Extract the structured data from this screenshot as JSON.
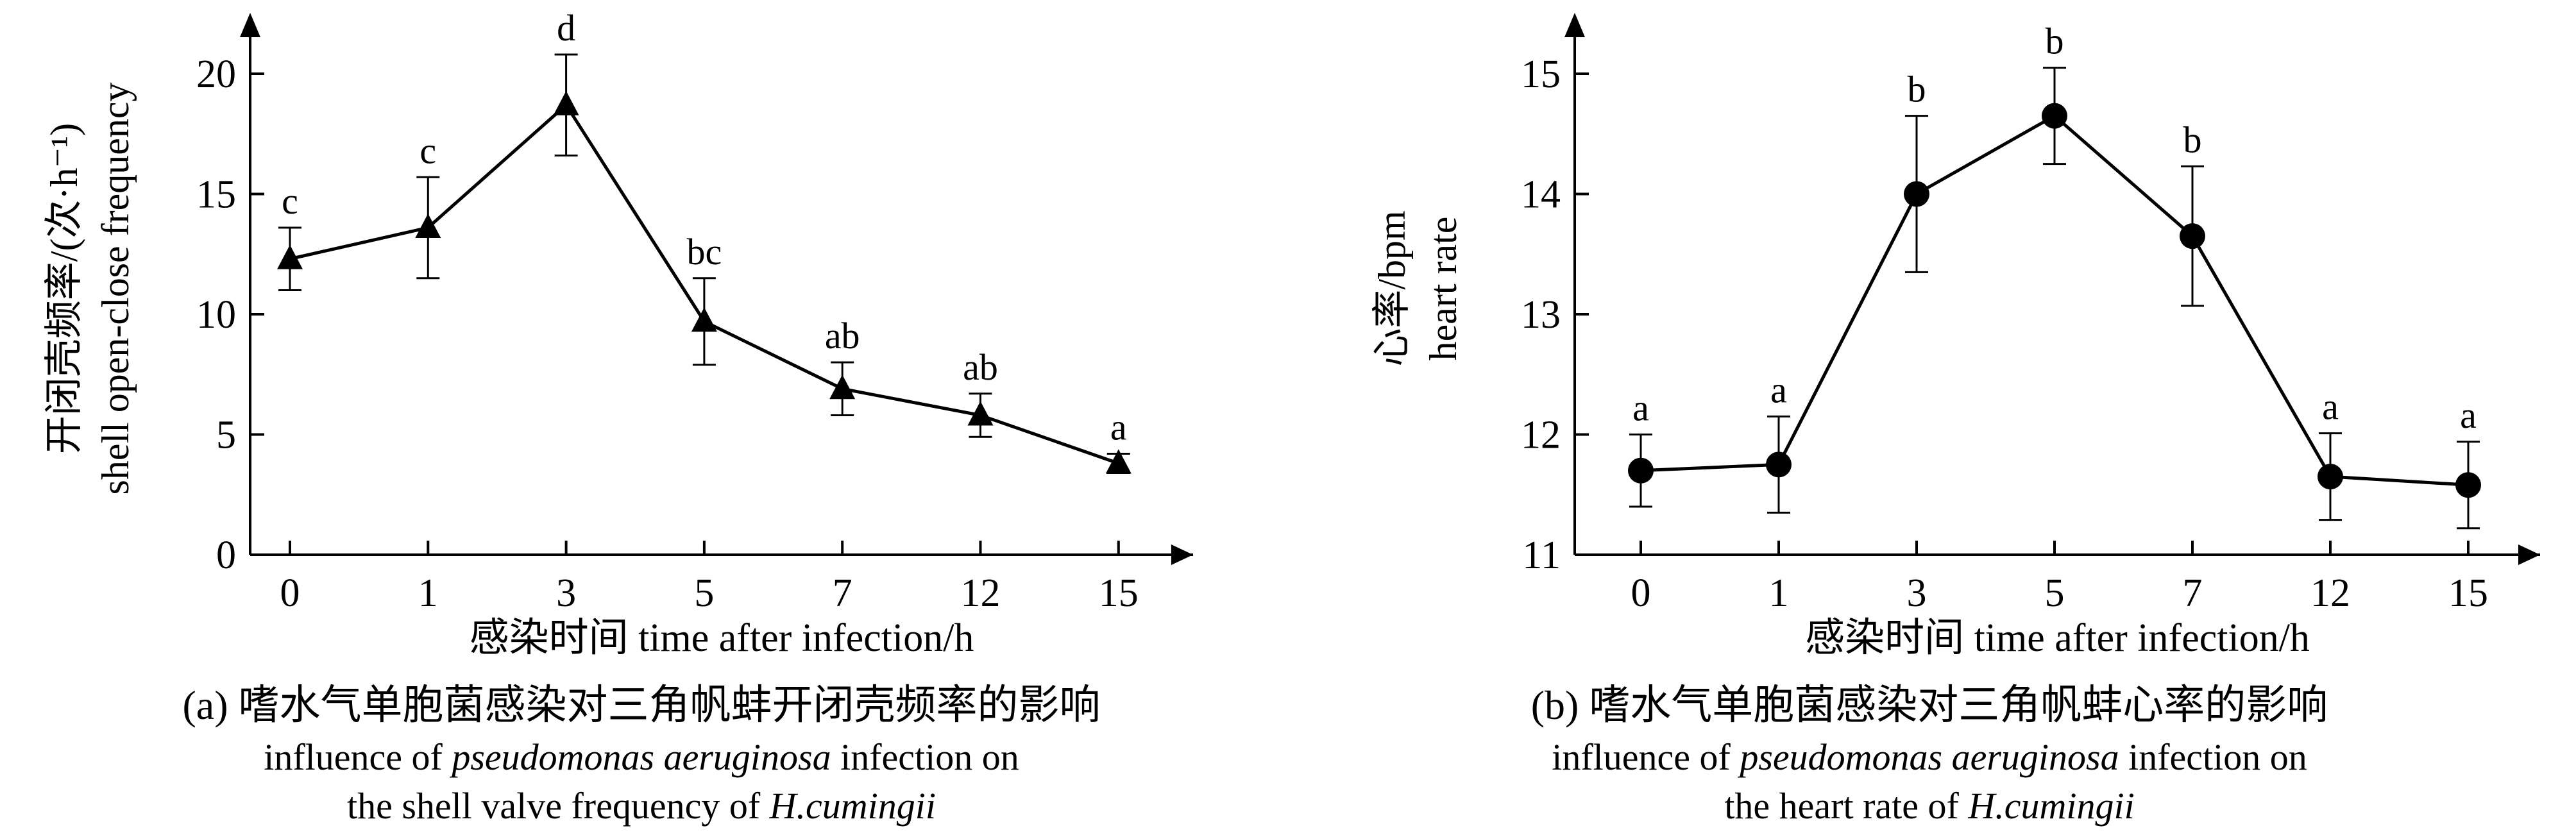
{
  "chart_data": [
    {
      "id": "a",
      "type": "line",
      "categories": [
        "0",
        "1",
        "3",
        "5",
        "7",
        "12",
        "15"
      ],
      "series": [
        {
          "marker": "triangle",
          "values": [
            12.3,
            13.6,
            18.7,
            9.7,
            6.9,
            5.8,
            3.8
          ],
          "errors": [
            1.3,
            2.1,
            2.1,
            1.8,
            1.1,
            0.9,
            0.4
          ],
          "significance": [
            "c",
            "c",
            "d",
            "bc",
            "ab",
            "ab",
            "a"
          ]
        }
      ],
      "ylim": [
        0,
        22
      ],
      "yticks": [
        "0",
        "5",
        "10",
        "15",
        "20"
      ],
      "ylabel_cn": "开闭壳频率/(次·h⁻¹)",
      "ylabel_en": "shell open-close frequency",
      "xlabel": "感染时间 time after infection/h",
      "caption_cn": "(a) 嗜水气单胞菌感染对三角帆蚌开闭壳频率的影响",
      "caption_en_1": "influence of",
      "caption_en_2": "pseudomonas aeruginosa",
      "caption_en_3": "infection on",
      "caption_en_4": "the shell valve frequency of",
      "caption_en_5": "H.cumingii",
      "grid": false,
      "legend": "none"
    },
    {
      "id": "b",
      "type": "line",
      "categories": [
        "0",
        "1",
        "3",
        "5",
        "7",
        "12",
        "15"
      ],
      "series": [
        {
          "marker": "circle",
          "values": [
            11.7,
            11.75,
            14.0,
            14.65,
            13.65,
            11.65,
            11.58
          ],
          "errors": [
            0.3,
            0.4,
            0.65,
            0.4,
            0.58,
            0.36,
            0.36
          ],
          "significance": [
            "a",
            "a",
            "b",
            "b",
            "b",
            "a",
            "a"
          ]
        }
      ],
      "ylim": [
        11,
        15.4
      ],
      "yticks": [
        "11",
        "12",
        "13",
        "14",
        "15"
      ],
      "ylabel_cn": "心率/bpm",
      "ylabel_en": "heart rate",
      "xlabel": "感染时间 time after infection/h",
      "caption_cn": "(b) 嗜水气单胞菌感染对三角帆蚌心率的影响",
      "caption_en_1": "influence of",
      "caption_en_2": "pseudomonas aeruginosa",
      "caption_en_3": "infection on",
      "caption_en_4": "the heart rate of",
      "caption_en_5": "H.cumingii",
      "grid": false,
      "legend": "none"
    }
  ]
}
